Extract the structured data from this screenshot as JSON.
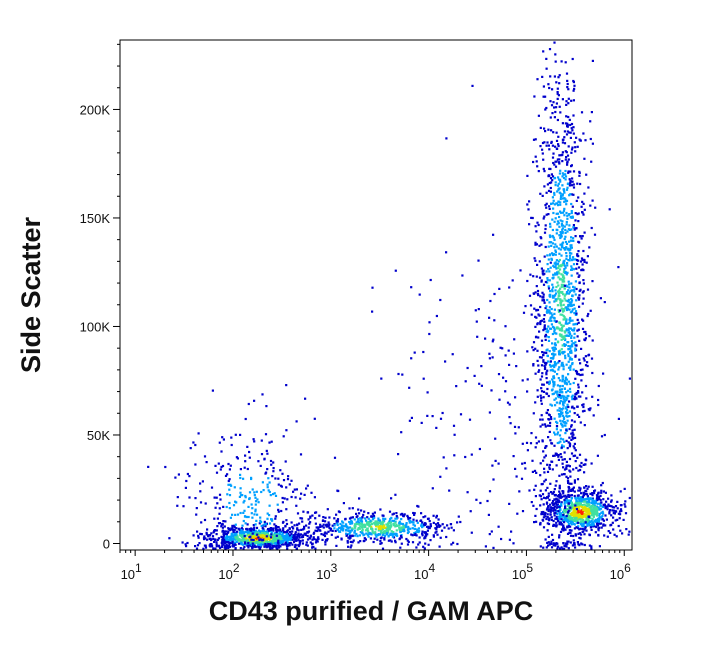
{
  "chart_data": {
    "type": "scatter",
    "style": "density-dot-plot",
    "xlabel": "CD43 purified / GAM APC",
    "ylabel": "Side Scatter",
    "x_scale": "log",
    "y_scale": "linear",
    "xlim": [
      7,
      1200000
    ],
    "ylim": [
      -3000,
      232000
    ],
    "grid": false,
    "legend": "none",
    "x_ticks": [
      {
        "value": 10,
        "base": "10",
        "exp": "1"
      },
      {
        "value": 100,
        "base": "10",
        "exp": "2"
      },
      {
        "value": 1000,
        "base": "10",
        "exp": "3"
      },
      {
        "value": 10000,
        "base": "10",
        "exp": "4"
      },
      {
        "value": 100000,
        "base": "10",
        "exp": "5"
      },
      {
        "value": 1000000,
        "base": "10",
        "exp": "6"
      }
    ],
    "y_ticks": [
      {
        "value": 0,
        "label": "0"
      },
      {
        "value": 50000,
        "label": "50K"
      },
      {
        "value": 100000,
        "label": "100K"
      },
      {
        "value": 150000,
        "label": "150K"
      },
      {
        "value": 200000,
        "label": "200K"
      }
    ],
    "colors": {
      "low": "#0000cc",
      "mid_low": "#00a0ff",
      "mid": "#40e0a0",
      "mid_high": "#e0e000",
      "high": "#ff2000"
    },
    "populations": [
      {
        "x_center": 180,
        "x_spread_decades": 0.25,
        "y_center": 3000,
        "y_spread": 2500,
        "count": 900,
        "peak": "high"
      },
      {
        "x_center": 150,
        "x_spread_decades": 0.35,
        "y_center": 20000,
        "y_spread": 18000,
        "count": 350,
        "peak": "mid_low"
      },
      {
        "x_center": 3000,
        "x_spread_decades": 0.35,
        "y_center": 8000,
        "y_spread": 3500,
        "count": 600,
        "peak": "mid_high"
      },
      {
        "x_center": 350000,
        "x_spread_decades": 0.18,
        "y_center": 15000,
        "y_spread": 5000,
        "count": 800,
        "peak": "high"
      },
      {
        "x_center": 220000,
        "x_spread_decades": 0.13,
        "y_center": 110000,
        "y_spread": 55000,
        "count": 1600,
        "peak": "mid"
      },
      {
        "x_center": 60000,
        "x_spread_decades": 0.6,
        "y_center": 60000,
        "y_spread": 40000,
        "count": 220,
        "peak": "low"
      }
    ]
  }
}
